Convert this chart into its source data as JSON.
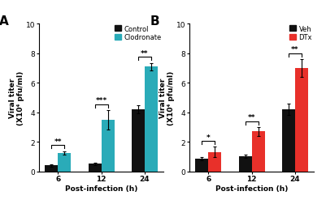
{
  "panel_A": {
    "label": "A",
    "categories": [
      "6",
      "12",
      "24"
    ],
    "control_means": [
      0.4,
      0.5,
      4.2
    ],
    "control_errors": [
      0.08,
      0.08,
      0.25
    ],
    "clodronate_means": [
      1.25,
      3.5,
      7.1
    ],
    "clodronate_errors": [
      0.12,
      0.65,
      0.25
    ],
    "control_color": "#111111",
    "clodronate_color": "#2aabb8",
    "significance": [
      "**",
      "***",
      "**"
    ],
    "legend_labels": [
      "Control",
      "Clodronate"
    ],
    "ylabel": "Viral titer\n(X10⁴ pfu/ml)",
    "xlabel": "Post-infection (h)",
    "ylim": [
      0,
      10
    ],
    "yticks": [
      0,
      2,
      4,
      6,
      8,
      10
    ]
  },
  "panel_B": {
    "label": "B",
    "categories": [
      "6",
      "12",
      "24"
    ],
    "veh_means": [
      0.85,
      1.0,
      4.2
    ],
    "veh_errors": [
      0.12,
      0.1,
      0.4
    ],
    "dtx_means": [
      1.3,
      2.7,
      7.0
    ],
    "dtx_errors": [
      0.35,
      0.3,
      0.6
    ],
    "veh_color": "#111111",
    "dtx_color": "#e8302a",
    "significance": [
      "*",
      "**",
      "**"
    ],
    "legend_labels": [
      "Veh",
      "DTx"
    ],
    "ylabel": "Viral titer\n(X10⁴ pfu/ml)",
    "xlabel": "Post-infection (h)",
    "ylim": [
      0,
      10
    ],
    "yticks": [
      0,
      2,
      4,
      6,
      8,
      10
    ]
  }
}
